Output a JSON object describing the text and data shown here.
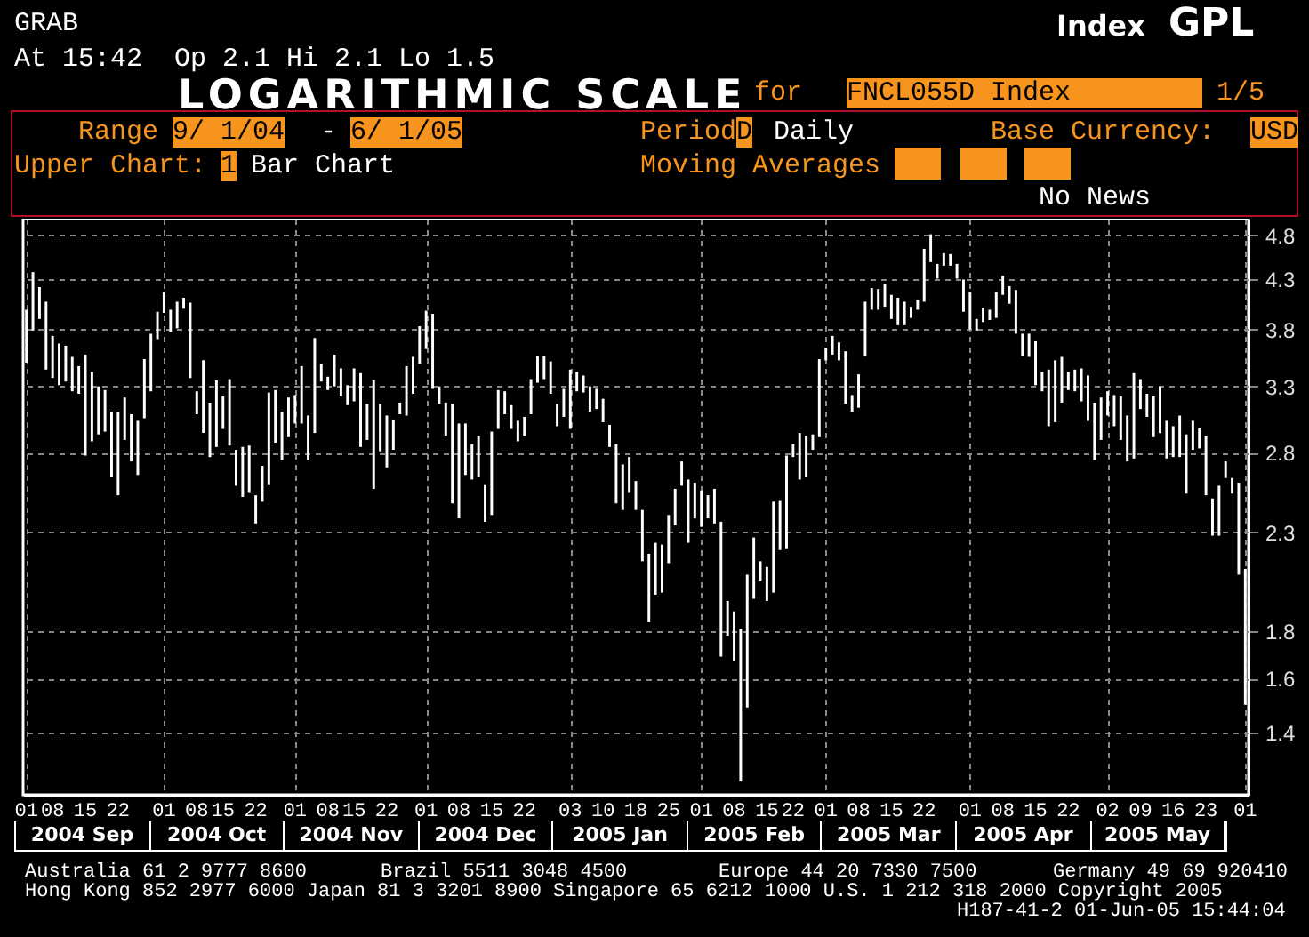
{
  "chart_data": {
    "type": "bar",
    "title": "LOGARITHMIC SCALE",
    "color": "#ffffff",
    "annotations": [
      "GRAB",
      "At 15:42  Op 2.1 Hi 2.1 Lo 1.5",
      "Index",
      "GPL",
      "for",
      "FNCL055D Index",
      "1/5",
      "Range",
      "9/ 1/04",
      "-",
      "6/ 1/05",
      "Period",
      "D",
      "Daily",
      "Base Currency:",
      "USD",
      "Upper Chart:",
      "1",
      "Bar Chart",
      "Moving Averages",
      "No News",
      "2004 Sep",
      "2004 Oct",
      "2004 Nov",
      "2004 Dec",
      "2005 Jan",
      "2005 Feb",
      "2005 Mar",
      "2005 Apr",
      "2005 May",
      "Australia 61 2 9777 8600",
      "Brazil 5511 3048 4500",
      "Europe 44 20 7330 7500",
      "Germany 49 69 920410",
      "Hong Kong 852 2977 6000 Japan 81 3 3201 8900 Singapore 65 6212 1000 U.S. 1 212 318 2000 Copyright 2005",
      "H187-41-2 01-Jun-05 15:44:04"
    ],
    "categories": [
      "01",
      null,
      null,
      null,
      "08",
      null,
      null,
      null,
      null,
      "15",
      null,
      null,
      null,
      null,
      "22",
      null,
      null,
      null,
      null,
      null,
      null,
      "01",
      null,
      null,
      null,
      null,
      "08",
      null,
      null,
      null,
      "15",
      null,
      null,
      null,
      null,
      "22",
      null,
      null,
      null,
      null,
      null,
      "01",
      null,
      null,
      null,
      null,
      "08",
      null,
      null,
      null,
      "15",
      null,
      null,
      null,
      null,
      "22",
      null,
      null,
      null,
      null,
      null,
      "01",
      null,
      null,
      null,
      null,
      "08",
      null,
      null,
      null,
      null,
      "15",
      null,
      null,
      null,
      null,
      "22",
      null,
      null,
      null,
      null,
      null,
      null,
      "03",
      null,
      null,
      null,
      null,
      "10",
      null,
      null,
      null,
      null,
      "18",
      null,
      null,
      null,
      null,
      "25",
      null,
      null,
      null,
      null,
      "01",
      null,
      null,
      null,
      null,
      "08",
      null,
      null,
      null,
      null,
      "15",
      null,
      null,
      null,
      "22",
      null,
      null,
      null,
      null,
      "01",
      null,
      null,
      null,
      null,
      "08",
      null,
      null,
      null,
      null,
      "15",
      null,
      null,
      null,
      null,
      "22",
      null,
      null,
      null,
      null,
      null,
      null,
      "01",
      null,
      null,
      null,
      null,
      "08",
      null,
      null,
      null,
      null,
      "15",
      null,
      null,
      null,
      null,
      "22",
      null,
      null,
      null,
      null,
      null,
      "02",
      null,
      null,
      null,
      null,
      "09",
      null,
      null,
      null,
      null,
      "16",
      null,
      null,
      null,
      null,
      "23",
      null,
      null,
      null,
      null,
      null,
      "01"
    ],
    "base": [
      3.5,
      3.79,
      3.9,
      3.44,
      3.37,
      3.31,
      3.34,
      3.26,
      3.24,
      2.78,
      2.88,
      2.93,
      2.95,
      2.64,
      2.52,
      2.89,
      2.74,
      2.65,
      3.05,
      3.26,
      3.71,
      3.96,
      3.78,
      3.81,
      4.0,
      3.37,
      3.08,
      2.94,
      2.77,
      2.84,
      2.97,
      2.85,
      2.58,
      2.51,
      2.54,
      2.35,
      2.48,
      2.59,
      2.87,
      2.75,
      2.91,
      3.01,
      3.01,
      2.75,
      2.94,
      3.34,
      3.27,
      3.3,
      3.22,
      3.15,
      3.18,
      2.84,
      2.89,
      2.56,
      2.81,
      2.7,
      2.82,
      3.08,
      3.07,
      3.24,
      3.49,
      3.62,
      3.28,
      3.16,
      2.92,
      2.47,
      2.38,
      2.65,
      2.62,
      2.64,
      2.36,
      2.4,
      2.97,
      3.08,
      2.97,
      2.88,
      2.92,
      3.08,
      3.33,
      3.36,
      3.24,
      2.99,
      3.06,
      2.97,
      3.26,
      3.25,
      3.1,
      3.12,
      3.02,
      2.84,
      2.47,
      2.43,
      2.54,
      2.43,
      2.14,
      1.84,
      1.97,
      1.98,
      2.13,
      2.34,
      2.58,
      2.24,
      2.38,
      2.33,
      2.38,
      2.35,
      1.69,
      1.78,
      1.67,
      1.24,
      1.49,
      1.95,
      2.04,
      1.94,
      1.98,
      2.2,
      2.21,
      2.77,
      2.62,
      2.64,
      2.82,
      2.91,
      3.52,
      3.57,
      3.52,
      3.16,
      3.1,
      3.13,
      3.56,
      3.99,
      3.99,
      4.02,
      3.9,
      3.84,
      3.84,
      3.91,
      3.99,
      4.07,
      4.49,
      4.31,
      4.45,
      4.45,
      4.31,
      3.97,
      3.8,
      3.79,
      3.87,
      3.89,
      3.91,
      4.14,
      4.05,
      3.76,
      3.56,
      3.55,
      3.31,
      3.26,
      2.99,
      3.02,
      3.17,
      3.27,
      3.26,
      3.18,
      3.03,
      2.75,
      2.89,
      3.07,
      2.99,
      2.89,
      2.74,
      2.76,
      3.12,
      3.06,
      2.91,
      2.94,
      2.76,
      2.77,
      2.77,
      2.53,
      2.82,
      2.83,
      2.52,
      2.28,
      2.28,
      2.63,
      2.53,
      2.07,
      1.5
    ],
    "values": [
      0.49,
      0.59,
      0.32,
      0.63,
      0.37,
      0.36,
      0.31,
      0.29,
      0.23,
      0.79,
      0.54,
      0.37,
      0.32,
      0.46,
      0.58,
      0.32,
      0.34,
      0.38,
      0.48,
      0.5,
      0.26,
      0.21,
      0.21,
      0.26,
      0.11,
      0.69,
      0.18,
      0.58,
      0.4,
      0.51,
      0.25,
      0.51,
      0.24,
      0.33,
      0.31,
      0.17,
      0.23,
      0.66,
      0.4,
      0.35,
      0.3,
      0.22,
      0.46,
      0.32,
      0.78,
      0.15,
      0.11,
      0.27,
      0.23,
      0.16,
      0.27,
      0.57,
      0.27,
      0.79,
      0.35,
      0.37,
      0.22,
      0.09,
      0.4,
      0.31,
      0.34,
      0.36,
      0.67,
      0.14,
      0.25,
      0.69,
      0.63,
      0.36,
      0.24,
      0.28,
      0.23,
      0.55,
      0.3,
      0.18,
      0.18,
      0.15,
      0.14,
      0.28,
      0.23,
      0.2,
      0.27,
      0.17,
      0.22,
      0.47,
      0.16,
      0.14,
      0.2,
      0.16,
      0.18,
      0.16,
      0.39,
      0.29,
      0.23,
      0.18,
      0.29,
      0.34,
      0.27,
      0.25,
      0.27,
      0.22,
      0.16,
      0.38,
      0.22,
      0.22,
      0.14,
      0.21,
      0.67,
      0.16,
      0.22,
      0.57,
      0.58,
      0.32,
      0.1,
      0.17,
      0.5,
      0.29,
      0.57,
      0.09,
      0.32,
      0.28,
      0.11,
      0.62,
      0.11,
      0.17,
      0.16,
      0.44,
      0.13,
      0.27,
      0.51,
      0.22,
      0.21,
      0.23,
      0.24,
      0.27,
      0.23,
      0.11,
      0.1,
      0.57,
      0.32,
      0.16,
      0.14,
      0.13,
      0.16,
      0.33,
      0.37,
      0.11,
      0.14,
      0.1,
      0.26,
      0.2,
      0.18,
      0.43,
      0.2,
      0.21,
      0.38,
      0.16,
      0.45,
      0.5,
      0.38,
      0.15,
      0.18,
      0.27,
      0.36,
      0.42,
      0.32,
      0.19,
      0.24,
      0.33,
      0.33,
      0.65,
      0.24,
      0.18,
      0.31,
      0.36,
      0.27,
      0.22,
      0.3,
      0.4,
      0.21,
      0.15,
      0.4,
      0.22,
      0.3,
      0.11,
      0.1,
      0.53,
      0.6
    ],
    "ylim": [
      1.2,
      5.0
    ],
    "yticks": [
      1.4,
      1.6,
      1.8,
      2.3,
      2.8,
      3.3,
      3.8,
      4.3,
      4.8
    ],
    "log": true,
    "grid": true
  }
}
